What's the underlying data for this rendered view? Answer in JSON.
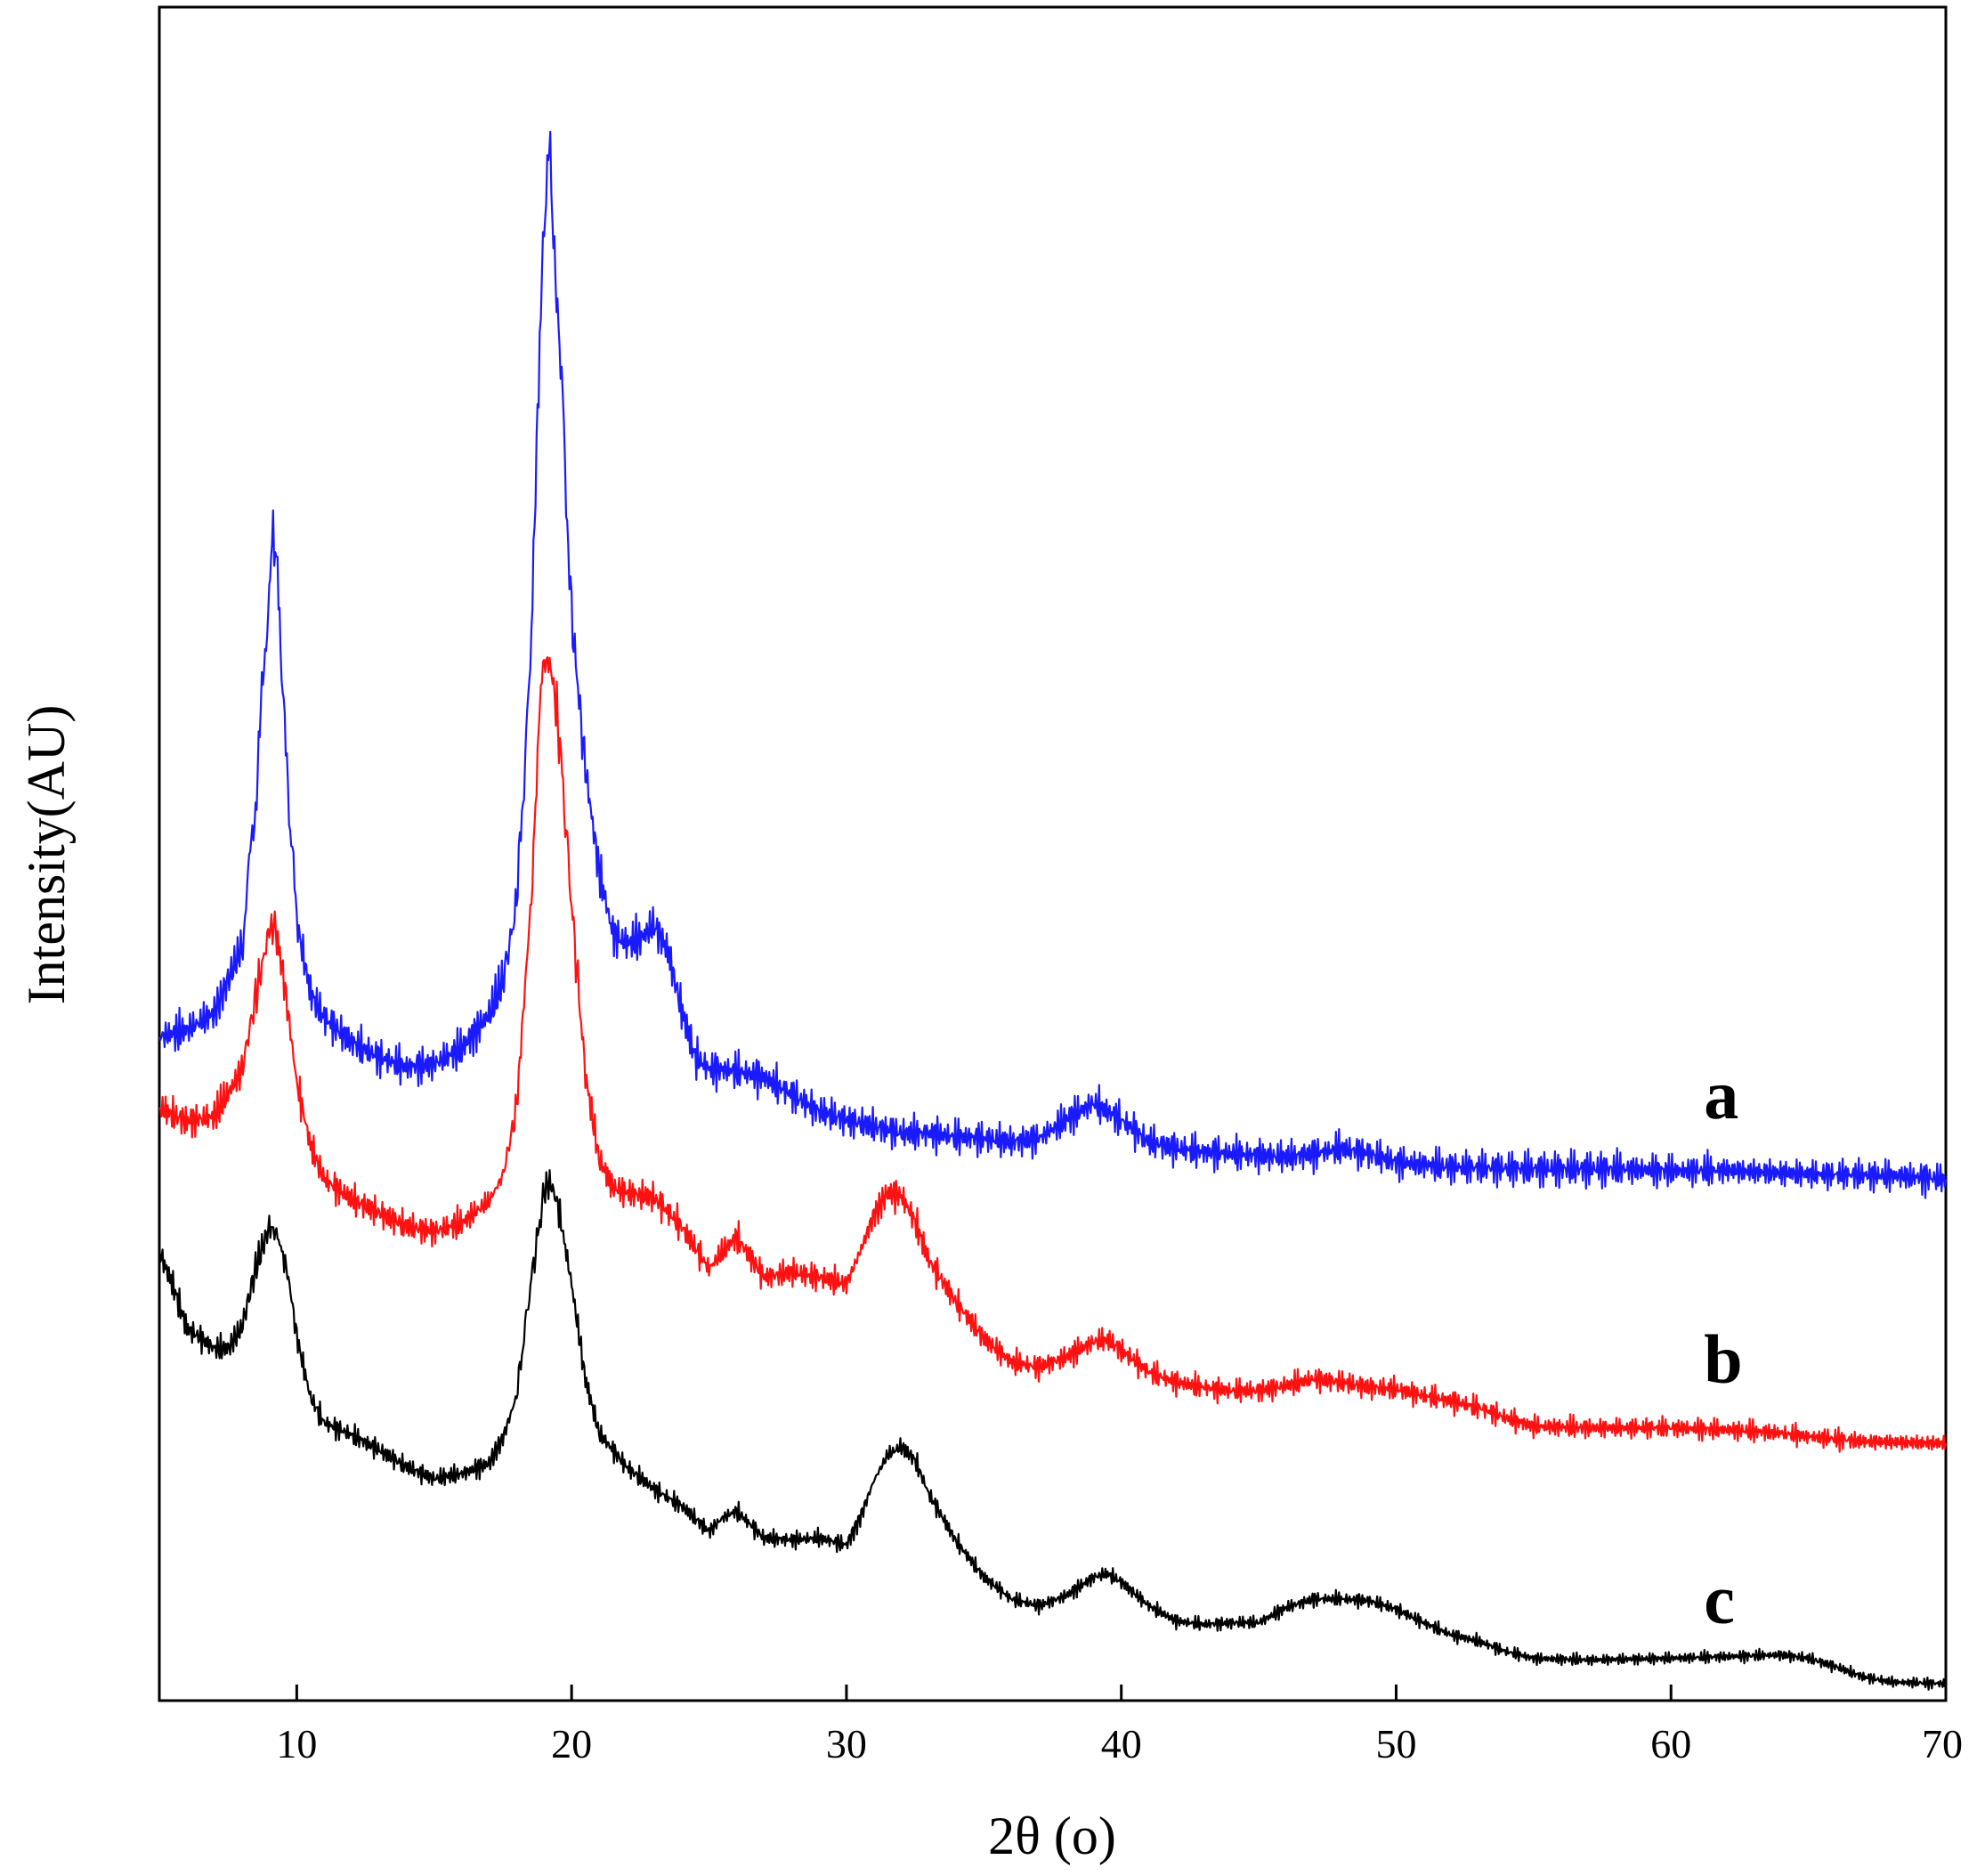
{
  "chart_data": {
    "type": "line",
    "xlabel": "2θ (o)",
    "ylabel": "Intensity(AU)",
    "xlim": [
      5,
      70
    ],
    "ylim": [
      0,
      100
    ],
    "x_ticks": [
      10,
      20,
      30,
      40,
      50,
      60,
      70
    ],
    "y_ticks": [],
    "grid": false,
    "legend": "none",
    "series": [
      {
        "name": "a",
        "color": "#1a1aff",
        "points": [
          [
            5,
            39.2
          ],
          [
            6,
            39.6
          ],
          [
            7,
            40.6
          ],
          [
            8,
            44.5
          ],
          [
            8.5,
            53
          ],
          [
            9,
            66
          ],
          [
            9.1,
            69
          ],
          [
            9.3,
            67
          ],
          [
            9.6,
            56
          ],
          [
            10,
            46
          ],
          [
            10.5,
            41.8
          ],
          [
            11,
            40.3
          ],
          [
            12,
            38.9
          ],
          [
            13,
            38.0
          ],
          [
            14,
            37.4
          ],
          [
            15,
            37.6
          ],
          [
            16,
            38.5
          ],
          [
            17,
            40.5
          ],
          [
            17.5,
            42.5
          ],
          [
            18,
            47
          ],
          [
            18.5,
            61
          ],
          [
            18.8,
            78
          ],
          [
            19,
            88
          ],
          [
            19.15,
            92
          ],
          [
            19.3,
            89
          ],
          [
            19.6,
            79
          ],
          [
            20,
            64
          ],
          [
            20.5,
            55
          ],
          [
            21,
            49
          ],
          [
            21.5,
            45.3
          ],
          [
            22,
            44.7
          ],
          [
            22.5,
            45.0
          ],
          [
            23,
            45.8
          ],
          [
            23.5,
            44.3
          ],
          [
            24,
            40.8
          ],
          [
            24.5,
            38.0
          ],
          [
            25,
            37.3
          ],
          [
            26,
            37.2
          ],
          [
            27,
            36.8
          ],
          [
            28,
            35.8
          ],
          [
            29,
            34.8
          ],
          [
            30,
            34.3
          ],
          [
            31,
            33.9
          ],
          [
            32,
            33.5
          ],
          [
            33,
            33.5
          ],
          [
            34,
            33.3
          ],
          [
            35,
            33.2
          ],
          [
            36,
            33.0
          ],
          [
            37,
            33.2
          ],
          [
            38,
            34.3
          ],
          [
            39,
            35.3
          ],
          [
            40,
            34.3
          ],
          [
            41,
            33.0
          ],
          [
            42,
            32.6
          ],
          [
            43,
            32.4
          ],
          [
            44,
            32.3
          ],
          [
            45,
            32.2
          ],
          [
            46,
            32.1
          ],
          [
            47,
            32.3
          ],
          [
            48,
            32.6
          ],
          [
            49,
            32.3
          ],
          [
            50,
            31.8
          ],
          [
            52,
            31.5
          ],
          [
            55,
            31.4
          ],
          [
            58,
            31.4
          ],
          [
            60,
            31.3
          ],
          [
            62,
            31.3
          ],
          [
            65,
            31.1
          ],
          [
            68,
            31.0
          ],
          [
            70,
            30.8
          ]
        ]
      },
      {
        "name": "b",
        "color": "#ff1111",
        "points": [
          [
            5,
            35.0
          ],
          [
            6,
            34.2
          ],
          [
            7,
            34.5
          ],
          [
            8,
            37.2
          ],
          [
            8.5,
            41.5
          ],
          [
            9,
            45.5
          ],
          [
            9.2,
            45.7
          ],
          [
            9.5,
            43.0
          ],
          [
            10,
            36.5
          ],
          [
            10.5,
            32.8
          ],
          [
            11,
            30.8
          ],
          [
            12,
            29.6
          ],
          [
            13,
            28.8
          ],
          [
            14,
            28.0
          ],
          [
            15,
            27.7
          ],
          [
            16,
            28.2
          ],
          [
            17,
            29.5
          ],
          [
            17.5,
            31
          ],
          [
            18,
            35
          ],
          [
            18.5,
            46
          ],
          [
            18.8,
            57
          ],
          [
            19,
            61
          ],
          [
            19.2,
            61.5
          ],
          [
            19.5,
            58
          ],
          [
            20,
            47
          ],
          [
            20.5,
            37
          ],
          [
            21,
            32
          ],
          [
            21.5,
            30.3
          ],
          [
            22,
            30.0
          ],
          [
            23,
            29.7
          ],
          [
            24,
            28.0
          ],
          [
            25,
            25.5
          ],
          [
            25.5,
            26.5
          ],
          [
            26,
            27.4
          ],
          [
            26.5,
            26.2
          ],
          [
            27,
            25.0
          ],
          [
            28,
            25.3
          ],
          [
            29,
            25.0
          ],
          [
            30,
            24.6
          ],
          [
            30.5,
            26.5
          ],
          [
            31,
            28.7
          ],
          [
            31.5,
            30.0
          ],
          [
            32,
            29.8
          ],
          [
            32.5,
            28.3
          ],
          [
            33,
            26.0
          ],
          [
            34,
            23.5
          ],
          [
            35,
            21.4
          ],
          [
            36,
            20.0
          ],
          [
            37,
            19.7
          ],
          [
            38,
            20.3
          ],
          [
            39,
            21.2
          ],
          [
            39.5,
            21.3
          ],
          [
            40,
            20.7
          ],
          [
            41,
            19.4
          ],
          [
            42,
            18.8
          ],
          [
            43,
            18.5
          ],
          [
            44,
            18.3
          ],
          [
            45,
            18.3
          ],
          [
            46,
            18.6
          ],
          [
            47,
            19.0
          ],
          [
            48,
            18.8
          ],
          [
            49,
            18.5
          ],
          [
            50,
            18.4
          ],
          [
            51,
            18.0
          ],
          [
            52,
            17.7
          ],
          [
            53,
            17.3
          ],
          [
            54,
            16.7
          ],
          [
            55,
            16.2
          ],
          [
            57,
            16.1
          ],
          [
            60,
            16.1
          ],
          [
            62,
            16.0
          ],
          [
            64,
            15.8
          ],
          [
            65,
            15.6
          ],
          [
            67,
            15.3
          ],
          [
            70,
            15.2
          ]
        ]
      },
      {
        "name": "c",
        "color": "#000000",
        "points": [
          [
            5,
            26.5
          ],
          [
            5.5,
            24.5
          ],
          [
            6,
            22.0
          ],
          [
            7,
            20.8
          ],
          [
            7.5,
            20.8
          ],
          [
            8,
            22.0
          ],
          [
            8.5,
            25.5
          ],
          [
            9,
            28.0
          ],
          [
            9.3,
            27.5
          ],
          [
            9.7,
            25.0
          ],
          [
            10,
            21.5
          ],
          [
            10.5,
            17.9
          ],
          [
            11,
            16.4
          ],
          [
            12,
            15.7
          ],
          [
            13,
            14.8
          ],
          [
            14,
            13.8
          ],
          [
            15,
            13.1
          ],
          [
            16,
            13.4
          ],
          [
            17,
            14.0
          ],
          [
            17.5,
            15.5
          ],
          [
            18,
            18.0
          ],
          [
            18.5,
            24.5
          ],
          [
            19,
            30.0
          ],
          [
            19.2,
            30.7
          ],
          [
            19.5,
            29.3
          ],
          [
            20,
            24.6
          ],
          [
            20.5,
            19.0
          ],
          [
            21,
            15.8
          ],
          [
            22,
            13.8
          ],
          [
            23,
            12.5
          ],
          [
            24,
            11.5
          ],
          [
            25,
            10.0
          ],
          [
            25.5,
            10.8
          ],
          [
            26,
            11.2
          ],
          [
            26.5,
            10.4
          ],
          [
            27,
            9.6
          ],
          [
            28,
            9.5
          ],
          [
            29,
            9.6
          ],
          [
            30,
            9.2
          ],
          [
            30.5,
            10.8
          ],
          [
            31,
            13.0
          ],
          [
            31.5,
            14.5
          ],
          [
            32,
            15.0
          ],
          [
            32.5,
            14.2
          ],
          [
            33,
            12.2
          ],
          [
            34,
            9.4
          ],
          [
            35,
            7.3
          ],
          [
            36,
            6.0
          ],
          [
            37,
            5.6
          ],
          [
            38,
            6.2
          ],
          [
            39,
            7.3
          ],
          [
            39.5,
            7.5
          ],
          [
            40,
            7.0
          ],
          [
            41,
            5.6
          ],
          [
            42,
            4.7
          ],
          [
            43,
            4.5
          ],
          [
            44,
            4.6
          ],
          [
            45,
            4.6
          ],
          [
            46,
            5.5
          ],
          [
            47,
            6.0
          ],
          [
            48,
            6.0
          ],
          [
            49,
            5.9
          ],
          [
            50,
            5.4
          ],
          [
            51,
            4.6
          ],
          [
            52,
            3.9
          ],
          [
            53,
            3.5
          ],
          [
            54,
            2.9
          ],
          [
            55,
            2.5
          ],
          [
            57,
            2.4
          ],
          [
            60,
            2.5
          ],
          [
            62,
            2.6
          ],
          [
            64,
            2.7
          ],
          [
            65,
            2.5
          ],
          [
            66,
            2.0
          ],
          [
            67,
            1.4
          ],
          [
            68,
            1.1
          ],
          [
            70,
            1.0
          ]
        ]
      }
    ]
  }
}
